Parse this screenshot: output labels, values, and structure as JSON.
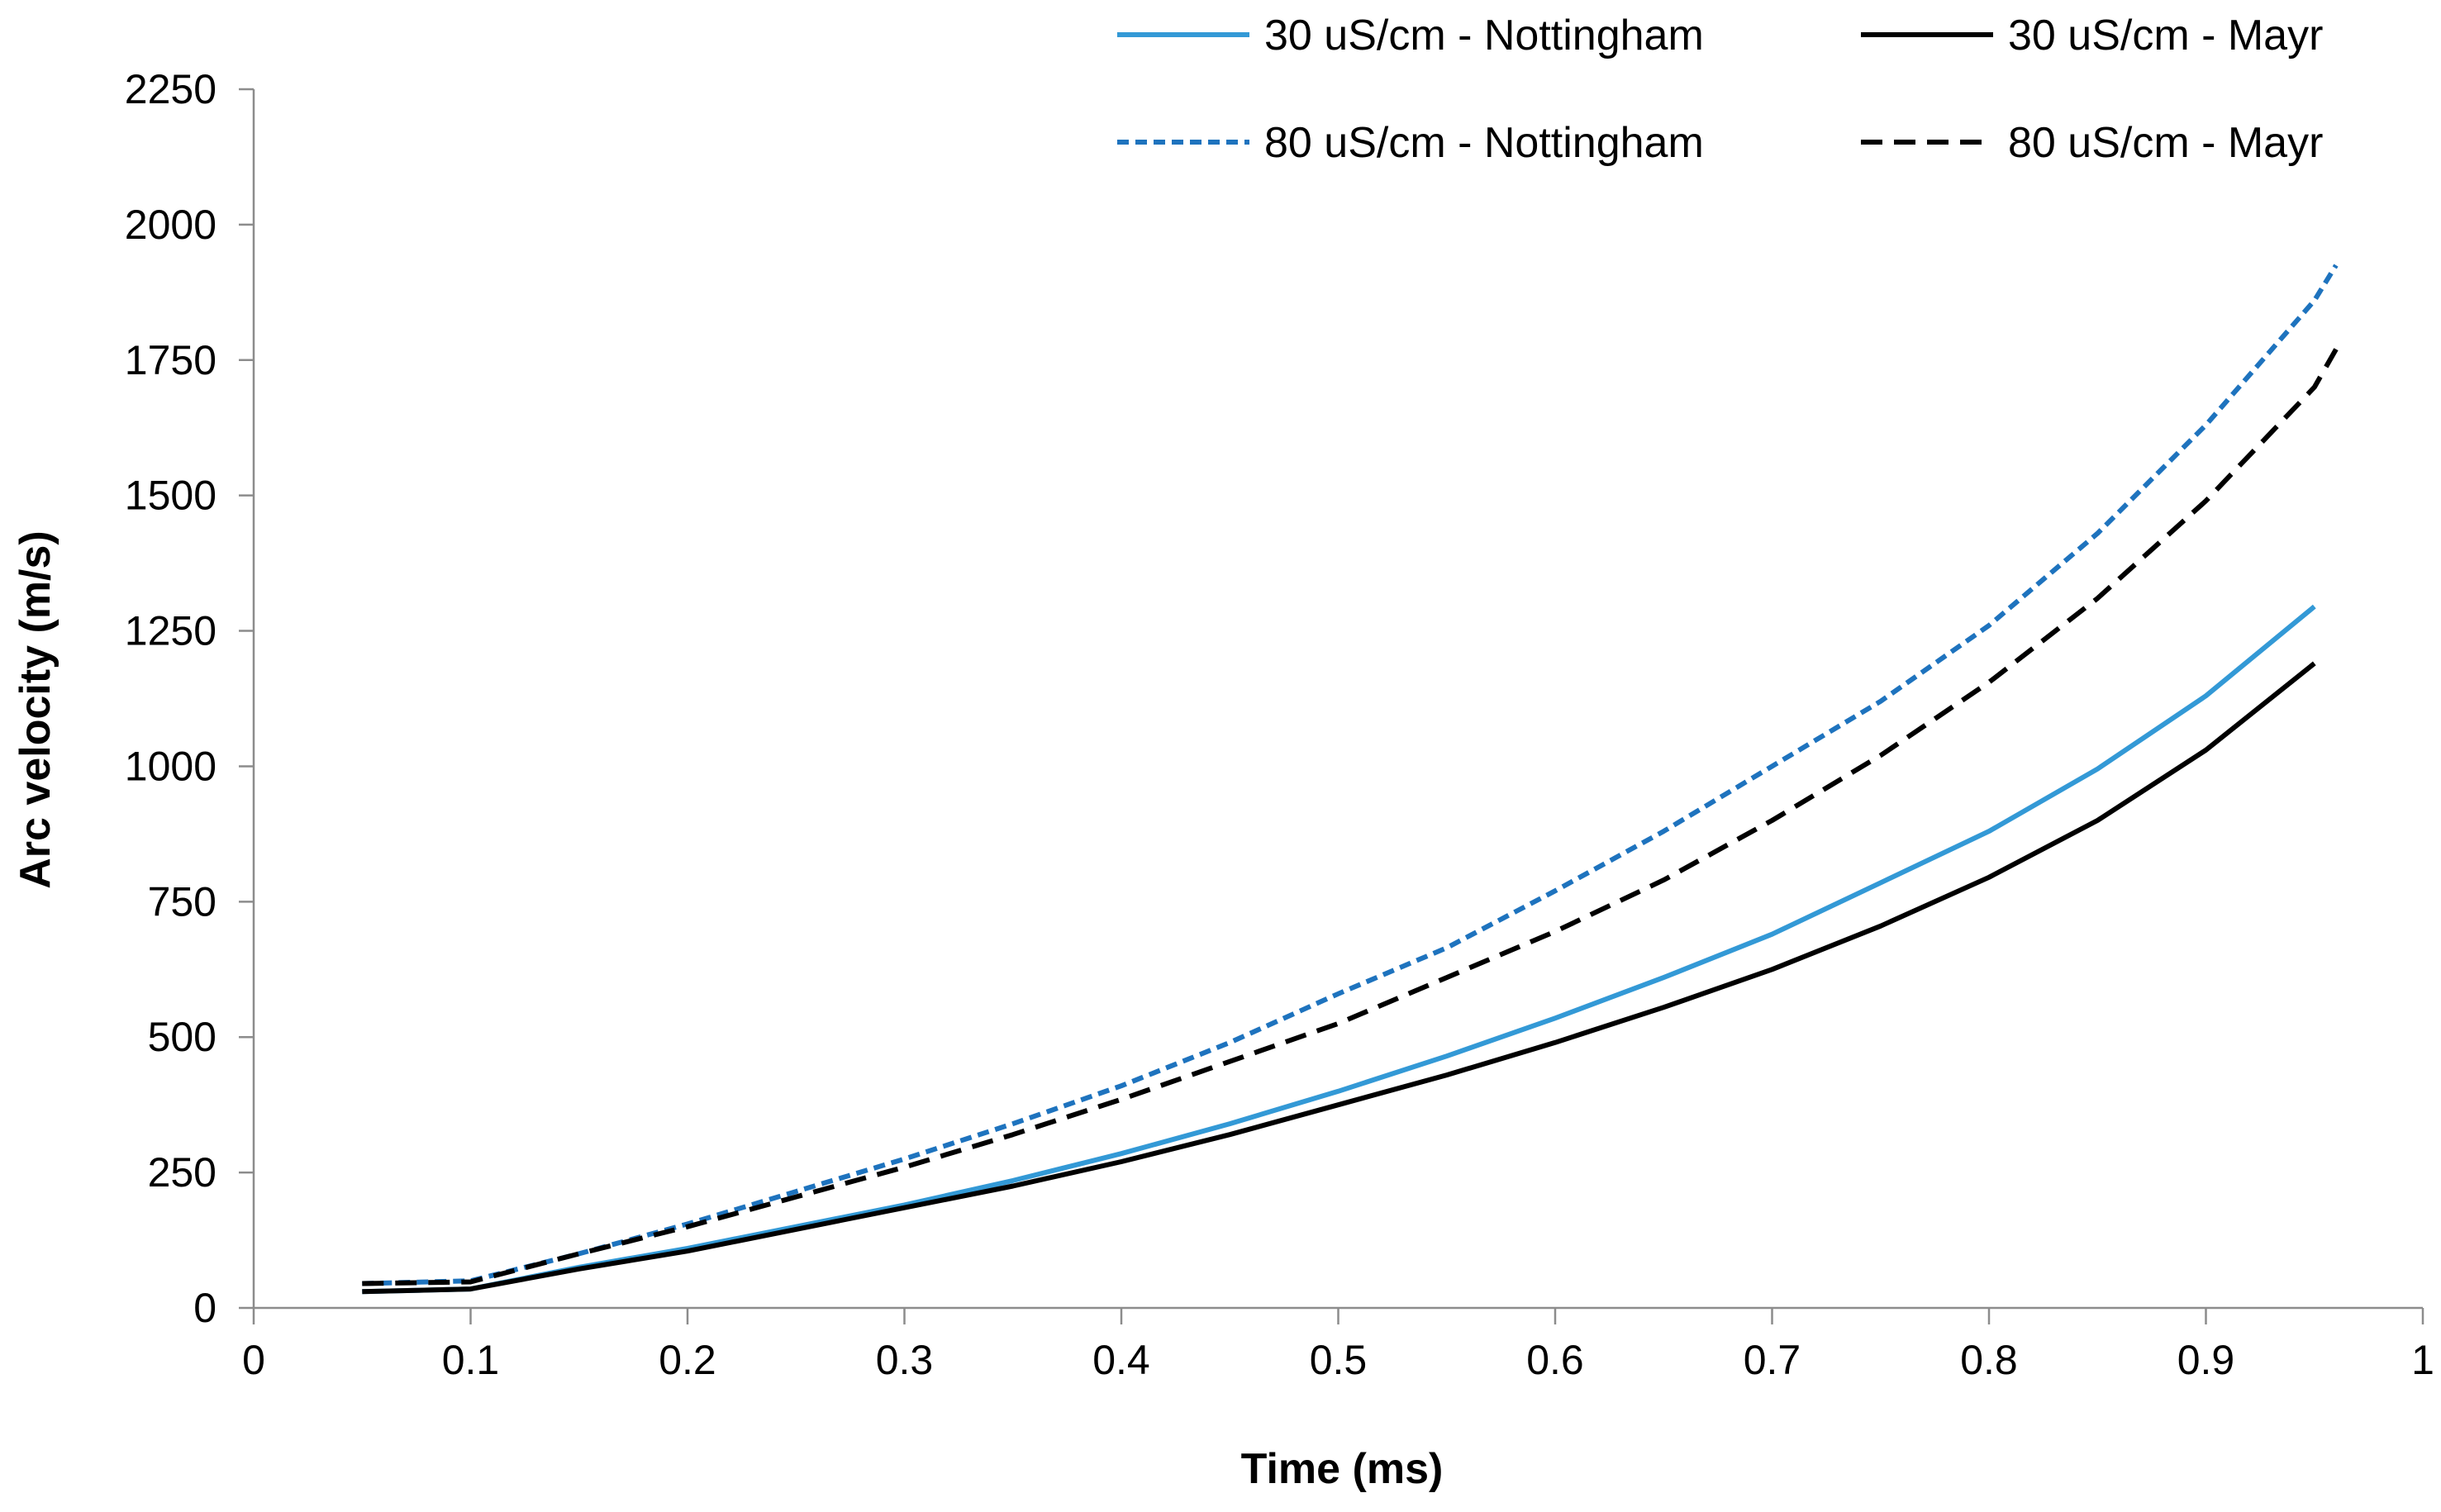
{
  "chart_data": {
    "type": "line",
    "title": "",
    "xlabel": "Time (ms)",
    "ylabel": "Arc velocity  (m/s)",
    "xlim": [
      0,
      1
    ],
    "ylim": [
      0,
      2250
    ],
    "xticks": [
      0,
      0.1,
      0.2,
      0.3,
      0.4,
      0.5,
      0.6,
      0.7,
      0.8,
      0.9,
      1
    ],
    "xtick_labels": [
      "0",
      "0.1",
      "0.2",
      "0.3",
      "0.4",
      "0.5",
      "0.6",
      "0.7",
      "0.8",
      "0.9",
      "1"
    ],
    "yticks": [
      0,
      250,
      500,
      750,
      1000,
      1250,
      1500,
      1750,
      2000,
      2250
    ],
    "ytick_labels": [
      "0",
      "250",
      "500",
      "750",
      "1000",
      "1250",
      "1500",
      "1750",
      "2000",
      "2250"
    ],
    "grid": false,
    "legend_position": "top-right",
    "series": [
      {
        "name": "30 uS/cm - Nottingham",
        "color": "#3399d6",
        "dash": "solid",
        "x": [
          0.05,
          0.1,
          0.15,
          0.2,
          0.25,
          0.3,
          0.35,
          0.4,
          0.45,
          0.5,
          0.55,
          0.6,
          0.65,
          0.7,
          0.75,
          0.8,
          0.85,
          0.9,
          0.95
        ],
        "y": [
          30,
          35,
          75,
          110,
          150,
          190,
          235,
          285,
          340,
          400,
          465,
          535,
          610,
          690,
          785,
          880,
          995,
          1130,
          1295
        ]
      },
      {
        "name": "30 uS/cm - Mayr",
        "color": "#000000",
        "dash": "solid",
        "x": [
          0.05,
          0.1,
          0.15,
          0.2,
          0.25,
          0.3,
          0.35,
          0.4,
          0.45,
          0.5,
          0.55,
          0.6,
          0.65,
          0.7,
          0.75,
          0.8,
          0.85,
          0.9,
          0.95
        ],
        "y": [
          30,
          35,
          72,
          105,
          145,
          185,
          225,
          270,
          320,
          375,
          430,
          490,
          555,
          625,
          705,
          795,
          900,
          1030,
          1190
        ]
      },
      {
        "name": "80 uS/cm - Nottingham",
        "color": "#1e73be",
        "dash": "dotted",
        "x": [
          0.05,
          0.1,
          0.15,
          0.2,
          0.25,
          0.3,
          0.35,
          0.4,
          0.45,
          0.5,
          0.55,
          0.6,
          0.65,
          0.7,
          0.75,
          0.8,
          0.85,
          0.9,
          0.95,
          0.96
        ],
        "y": [
          45,
          50,
          100,
          155,
          215,
          275,
          340,
          410,
          490,
          580,
          665,
          770,
          880,
          1000,
          1120,
          1260,
          1430,
          1630,
          1860,
          1925
        ]
      },
      {
        "name": "80 uS/cm - Mayr",
        "color": "#000000",
        "dash": "dashed",
        "x": [
          0.05,
          0.1,
          0.15,
          0.2,
          0.25,
          0.3,
          0.35,
          0.4,
          0.45,
          0.5,
          0.55,
          0.6,
          0.65,
          0.7,
          0.75,
          0.8,
          0.85,
          0.9,
          0.95,
          0.96
        ],
        "y": [
          45,
          48,
          100,
          150,
          205,
          260,
          320,
          385,
          455,
          525,
          610,
          695,
          790,
          900,
          1020,
          1155,
          1310,
          1490,
          1700,
          1770
        ]
      }
    ]
  }
}
